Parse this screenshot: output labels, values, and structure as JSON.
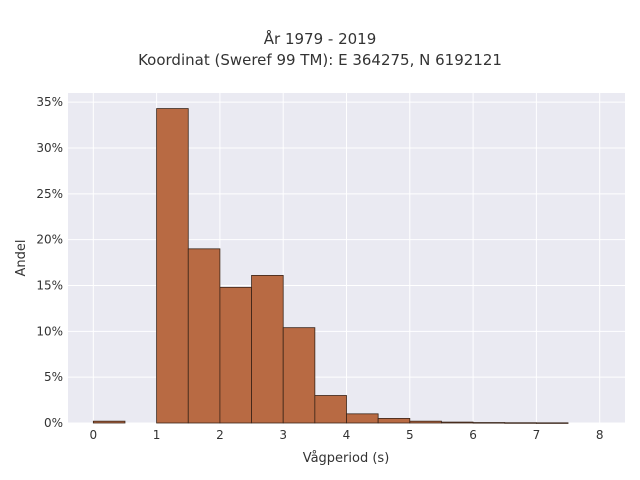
{
  "chart_data": {
    "type": "bar",
    "title": "År 1979 - 2019",
    "subtitle": "Koordinat (Sweref 99 TM): E 364275, N 6192121",
    "xlabel": "Vågperiod (s)",
    "ylabel": "Andel",
    "xlim": [
      -0.4,
      8.4
    ],
    "ylim": [
      0,
      0.36
    ],
    "xticks": [
      0,
      1,
      2,
      3,
      4,
      5,
      6,
      7,
      8
    ],
    "xtick_labels": [
      "0",
      "1",
      "2",
      "3",
      "4",
      "5",
      "6",
      "7",
      "8"
    ],
    "yticks": [
      0,
      0.05,
      0.1,
      0.15,
      0.2,
      0.25,
      0.3,
      0.35
    ],
    "ytick_labels": [
      "0%",
      "5%",
      "10%",
      "15%",
      "20%",
      "25%",
      "30%",
      "35%"
    ],
    "bin_width": 0.5,
    "bins": [
      {
        "x0": 0.0,
        "x1": 0.5,
        "value": 0.002
      },
      {
        "x0": 0.5,
        "x1": 1.0,
        "value": 0.0
      },
      {
        "x0": 1.0,
        "x1": 1.5,
        "value": 0.343
      },
      {
        "x0": 1.5,
        "x1": 2.0,
        "value": 0.19
      },
      {
        "x0": 2.0,
        "x1": 2.5,
        "value": 0.148
      },
      {
        "x0": 2.5,
        "x1": 3.0,
        "value": 0.161
      },
      {
        "x0": 3.0,
        "x1": 3.5,
        "value": 0.104
      },
      {
        "x0": 3.5,
        "x1": 4.0,
        "value": 0.03
      },
      {
        "x0": 4.0,
        "x1": 4.5,
        "value": 0.01
      },
      {
        "x0": 4.5,
        "x1": 5.0,
        "value": 0.005
      },
      {
        "x0": 5.0,
        "x1": 5.5,
        "value": 0.002
      },
      {
        "x0": 5.5,
        "x1": 6.0,
        "value": 0.001
      },
      {
        "x0": 6.0,
        "x1": 6.5,
        "value": 0.0005
      },
      {
        "x0": 6.5,
        "x1": 7.0,
        "value": 0.0003
      },
      {
        "x0": 7.0,
        "x1": 7.5,
        "value": 0.0002
      }
    ],
    "grid": true,
    "colors": {
      "bar_fill": "#b86a43",
      "bar_edge": "#3a2418",
      "plot_bg": "#eaeaf2",
      "grid": "#ffffff"
    }
  }
}
